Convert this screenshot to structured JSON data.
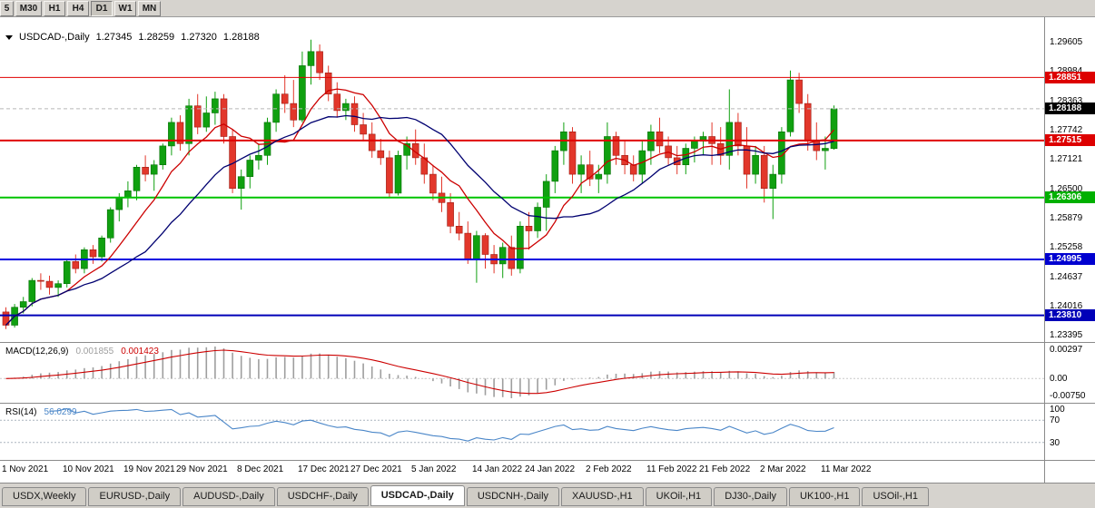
{
  "toolbar": {
    "timeframes": [
      {
        "label": "5",
        "active": false
      },
      {
        "label": "M30",
        "active": false
      },
      {
        "label": "H1",
        "active": false
      },
      {
        "label": "H4",
        "active": false
      },
      {
        "label": "D1",
        "active": true
      },
      {
        "label": "W1",
        "active": false
      },
      {
        "label": "MN",
        "active": false
      }
    ]
  },
  "chart": {
    "title_symbol": "USDCAD-,Daily",
    "open": "1.27345",
    "high": "1.28259",
    "low": "1.27320",
    "close": "1.28188"
  },
  "chart_data": {
    "type": "candlestick",
    "symbol": "USDCAD-",
    "timeframe": "Daily",
    "start_date": "1 Nov 2021",
    "end_date": "14 Mar 2022",
    "ohlc": [
      [
        1.2388,
        1.2398,
        1.2352,
        1.236
      ],
      [
        1.236,
        1.2405,
        1.2355,
        1.2398
      ],
      [
        1.2398,
        1.242,
        1.2385,
        1.241
      ],
      [
        1.241,
        1.246,
        1.24,
        1.2455
      ],
      [
        1.2455,
        1.247,
        1.2435,
        1.2453
      ],
      [
        1.2453,
        1.2465,
        1.2425,
        1.244
      ],
      [
        1.244,
        1.2455,
        1.242,
        1.2448
      ],
      [
        1.2448,
        1.25,
        1.244,
        1.2495
      ],
      [
        1.2495,
        1.251,
        1.247,
        1.248
      ],
      [
        1.248,
        1.2525,
        1.247,
        1.252
      ],
      [
        1.252,
        1.253,
        1.249,
        1.2505
      ],
      [
        1.2505,
        1.255,
        1.2495,
        1.2545
      ],
      [
        1.2545,
        1.261,
        1.2535,
        1.2605
      ],
      [
        1.2605,
        1.264,
        1.258,
        1.263
      ],
      [
        1.263,
        1.2665,
        1.261,
        1.2645
      ],
      [
        1.2645,
        1.27,
        1.2625,
        1.2695
      ],
      [
        1.2695,
        1.272,
        1.2665,
        1.268
      ],
      [
        1.268,
        1.271,
        1.2645,
        1.27
      ],
      [
        1.27,
        1.2745,
        1.269,
        1.274
      ],
      [
        1.274,
        1.28,
        1.272,
        1.279
      ],
      [
        1.279,
        1.2805,
        1.273,
        1.2745
      ],
      [
        1.2745,
        1.284,
        1.272,
        1.2825
      ],
      [
        1.2825,
        1.285,
        1.2765,
        1.278
      ],
      [
        1.278,
        1.2845,
        1.277,
        1.281
      ],
      [
        1.281,
        1.2855,
        1.2785,
        1.284
      ],
      [
        1.284,
        1.285,
        1.2745,
        1.276
      ],
      [
        1.276,
        1.2775,
        1.264,
        1.265
      ],
      [
        1.265,
        1.269,
        1.2605,
        1.2675
      ],
      [
        1.2675,
        1.272,
        1.265,
        1.271
      ],
      [
        1.271,
        1.2745,
        1.269,
        1.272
      ],
      [
        1.272,
        1.28,
        1.27,
        1.279
      ],
      [
        1.279,
        1.286,
        1.277,
        1.285
      ],
      [
        1.285,
        1.289,
        1.281,
        1.283
      ],
      [
        1.283,
        1.288,
        1.278,
        1.2795
      ],
      [
        1.2795,
        1.294,
        1.279,
        1.291
      ],
      [
        1.291,
        1.2965,
        1.287,
        1.294
      ],
      [
        1.294,
        1.2955,
        1.288,
        1.2895
      ],
      [
        1.2895,
        1.291,
        1.2835,
        1.285
      ],
      [
        1.285,
        1.2875,
        1.28,
        1.2815
      ],
      [
        1.2815,
        1.284,
        1.2795,
        1.283
      ],
      [
        1.283,
        1.2845,
        1.277,
        1.2785
      ],
      [
        1.2785,
        1.281,
        1.275,
        1.2765
      ],
      [
        1.2765,
        1.279,
        1.2715,
        1.273
      ],
      [
        1.273,
        1.2755,
        1.27,
        1.2715
      ],
      [
        1.2715,
        1.273,
        1.263,
        1.264
      ],
      [
        1.264,
        1.273,
        1.2635,
        1.272
      ],
      [
        1.272,
        1.276,
        1.269,
        1.2745
      ],
      [
        1.2745,
        1.2775,
        1.27,
        1.2715
      ],
      [
        1.2715,
        1.2745,
        1.266,
        1.268
      ],
      [
        1.268,
        1.27,
        1.2625,
        1.264
      ],
      [
        1.264,
        1.2675,
        1.26,
        1.262
      ],
      [
        1.262,
        1.264,
        1.2555,
        1.257
      ],
      [
        1.257,
        1.26,
        1.254,
        1.2555
      ],
      [
        1.2555,
        1.258,
        1.249,
        1.25
      ],
      [
        1.25,
        1.256,
        1.245,
        1.255
      ],
      [
        1.255,
        1.2555,
        1.248,
        1.251
      ],
      [
        1.251,
        1.253,
        1.247,
        1.249
      ],
      [
        1.249,
        1.2535,
        1.246,
        1.2525
      ],
      [
        1.2525,
        1.255,
        1.2465,
        1.248
      ],
      [
        1.248,
        1.258,
        1.247,
        1.257
      ],
      [
        1.257,
        1.26,
        1.252,
        1.256
      ],
      [
        1.256,
        1.262,
        1.2545,
        1.261
      ],
      [
        1.261,
        1.268,
        1.256,
        1.2665
      ],
      [
        1.2665,
        1.274,
        1.264,
        1.273
      ],
      [
        1.273,
        1.279,
        1.27,
        1.277
      ],
      [
        1.277,
        1.278,
        1.266,
        1.268
      ],
      [
        1.268,
        1.272,
        1.264,
        1.27
      ],
      [
        1.27,
        1.273,
        1.2655,
        1.267
      ],
      [
        1.267,
        1.27,
        1.264,
        1.268
      ],
      [
        1.268,
        1.279,
        1.266,
        1.276
      ],
      [
        1.276,
        1.277,
        1.27,
        1.272
      ],
      [
        1.272,
        1.275,
        1.268,
        1.27
      ],
      [
        1.27,
        1.272,
        1.2665,
        1.268
      ],
      [
        1.268,
        1.275,
        1.266,
        1.273
      ],
      [
        1.273,
        1.2785,
        1.27,
        1.277
      ],
      [
        1.277,
        1.28,
        1.2725,
        1.274
      ],
      [
        1.274,
        1.276,
        1.27,
        1.2715
      ],
      [
        1.2715,
        1.274,
        1.268,
        1.27
      ],
      [
        1.27,
        1.2745,
        1.268,
        1.2735
      ],
      [
        1.2735,
        1.276,
        1.2705,
        1.275
      ],
      [
        1.275,
        1.277,
        1.272,
        1.276
      ],
      [
        1.276,
        1.279,
        1.27,
        1.2745
      ],
      [
        1.2745,
        1.278,
        1.27,
        1.272
      ],
      [
        1.272,
        1.286,
        1.269,
        1.279
      ],
      [
        1.279,
        1.281,
        1.272,
        1.274
      ],
      [
        1.274,
        1.278,
        1.265,
        1.268
      ],
      [
        1.268,
        1.274,
        1.266,
        1.272
      ],
      [
        1.272,
        1.274,
        1.262,
        1.265
      ],
      [
        1.265,
        1.27,
        1.2585,
        1.268
      ],
      [
        1.268,
        1.278,
        1.266,
        1.277
      ],
      [
        1.277,
        1.29,
        1.276,
        1.288
      ],
      [
        1.288,
        1.2895,
        1.281,
        1.283
      ],
      [
        1.283,
        1.285,
        1.273,
        1.275
      ],
      [
        1.275,
        1.279,
        1.271,
        1.273
      ],
      [
        1.273,
        1.276,
        1.269,
        1.2735
      ],
      [
        1.27345,
        1.28259,
        1.2732,
        1.28188
      ]
    ],
    "x_labels": [
      {
        "text": "1 Nov 2021",
        "index": 0
      },
      {
        "text": "10 Nov 2021",
        "index": 7
      },
      {
        "text": "19 Nov 2021",
        "index": 14
      },
      {
        "text": "29 Nov 2021",
        "index": 20
      },
      {
        "text": "8 Dec 2021",
        "index": 27
      },
      {
        "text": "17 Dec 2021",
        "index": 34
      },
      {
        "text": "27 Dec 2021",
        "index": 40
      },
      {
        "text": "5 Jan 2022",
        "index": 47
      },
      {
        "text": "14 Jan 2022",
        "index": 54
      },
      {
        "text": "24 Jan 2022",
        "index": 60
      },
      {
        "text": "2 Feb 2022",
        "index": 67
      },
      {
        "text": "11 Feb 2022",
        "index": 74
      },
      {
        "text": "21 Feb 2022",
        "index": 80
      },
      {
        "text": "2 Mar 2022",
        "index": 87
      },
      {
        "text": "11 Mar 2022",
        "index": 94
      }
    ],
    "y_axis_labels": [
      "1.29605",
      "1.28984",
      "1.28363",
      "1.27742",
      "1.27121",
      "1.26500",
      "1.25879",
      "1.25258",
      "1.24637",
      "1.24016",
      "1.23395"
    ],
    "hlines": [
      {
        "price": 1.28851,
        "color": "#e00000",
        "width": 1
      },
      {
        "price": 1.27515,
        "color": "#e00000",
        "width": 2
      },
      {
        "price": 1.26306,
        "color": "#00c400",
        "width": 2
      },
      {
        "price": 1.24995,
        "color": "#0000e0",
        "width": 2
      },
      {
        "price": 1.2381,
        "color": "#0000b8",
        "width": 2
      }
    ],
    "price_badges": [
      {
        "text": "1.28851",
        "price": 1.28851,
        "color": "#dd0000"
      },
      {
        "text": "1.28188",
        "price": 1.28188,
        "color": "#000000"
      },
      {
        "text": "1.27515",
        "price": 1.27515,
        "color": "#dd0000"
      },
      {
        "text": "1.26306",
        "price": 1.26306,
        "color": "#00b000"
      },
      {
        "text": "1.24995",
        "price": 1.24995,
        "color": "#0000d0"
      },
      {
        "text": "1.23810",
        "price": 1.2381,
        "color": "#0000b8"
      }
    ],
    "current_price": 1.28188,
    "moving_averages": [
      {
        "period": 8,
        "color": "#cc0000"
      },
      {
        "period": 17,
        "color": "#000070"
      }
    ],
    "candle_colors": {
      "up_fill": "#10a010",
      "up_stroke": "#077007",
      "down_fill": "#e2372b",
      "down_stroke": "#9e1b12"
    },
    "macd": {
      "name": "MACD(12,26,9)",
      "value_main": "0.001855",
      "value_signal": "0.001423",
      "fast": 12,
      "slow": 26,
      "signal": 9,
      "axis_labels": [
        "0.00297",
        "0.00",
        "-0.00750"
      ],
      "histogram_color": "#9e9e9e",
      "signal_color": "#cc0000"
    },
    "rsi": {
      "name": "RSI(14)",
      "value": "56.0299",
      "period": 14,
      "levels": [
        70,
        30
      ],
      "axis_labels": [
        "100",
        "70",
        "30"
      ],
      "line_color": "#4a86c8"
    }
  },
  "tabs": [
    {
      "label": "USDX,Weekly",
      "active": false
    },
    {
      "label": "EURUSD-,Daily",
      "active": false
    },
    {
      "label": "AUDUSD-,Daily",
      "active": false
    },
    {
      "label": "USDCHF-,Daily",
      "active": false
    },
    {
      "label": "USDCAD-,Daily",
      "active": true
    },
    {
      "label": "USDCNH-,Daily",
      "active": false
    },
    {
      "label": "XAUUSD-,H1",
      "active": false
    },
    {
      "label": "UKOil-,H1",
      "active": false
    },
    {
      "label": "DJ30-,Daily",
      "active": false
    },
    {
      "label": "UK100-,H1",
      "active": false
    },
    {
      "label": "USOil-,H1",
      "active": false
    }
  ]
}
